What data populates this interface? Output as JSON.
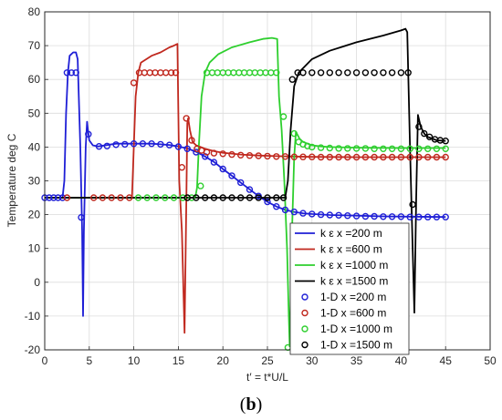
{
  "chart_data": {
    "type": "line",
    "xlabel": "t′ = t*U/L",
    "ylabel": "Temperature deg C",
    "xlim": [
      0,
      50
    ],
    "ylim": [
      -20,
      80
    ],
    "xticks": [
      0,
      5,
      10,
      15,
      20,
      25,
      30,
      35,
      40,
      45,
      50
    ],
    "yticks": [
      -20,
      -10,
      0,
      10,
      20,
      30,
      40,
      50,
      60,
      70,
      80
    ],
    "grid": true,
    "legend_position": "lower-right",
    "series": [
      {
        "name": "k ε x =200 m",
        "style": "line",
        "color": "#1f1fd6",
        "x": [
          0,
          2.0,
          2.2,
          2.4,
          2.6,
          2.8,
          3.2,
          3.5,
          3.7,
          4.0,
          4.2,
          4.3,
          4.4,
          4.6,
          4.75,
          4.85,
          5.0,
          5.4,
          6,
          7,
          8,
          9,
          10,
          11,
          12,
          13,
          14,
          15,
          16,
          17,
          18,
          19,
          20,
          21,
          22,
          23,
          24,
          25,
          26,
          27,
          28,
          29,
          30,
          32,
          35,
          38,
          41,
          45
        ],
        "y": [
          25,
          25,
          30,
          50,
          62,
          67,
          68,
          68,
          66,
          40,
          15,
          -10,
          15,
          40,
          47.5,
          45,
          42,
          40.5,
          40.2,
          40.6,
          41,
          41,
          41,
          41,
          41,
          40.8,
          40.6,
          40.2,
          39.6,
          38.6,
          37.2,
          35.6,
          33.5,
          31.5,
          29.5,
          27.5,
          25.5,
          23.8,
          22.4,
          21.4,
          20.8,
          20.4,
          20.2,
          19.9,
          19.7,
          19.5,
          19.4,
          19.3
        ]
      },
      {
        "name": "k ε x =600 m",
        "style": "line",
        "color": "#c0281e",
        "x": [
          0,
          9.8,
          10.0,
          10.2,
          10.5,
          10.8,
          12,
          13,
          14,
          14.5,
          14.9,
          15.1,
          15.4,
          15.7,
          15.9,
          16.0,
          16.1,
          16.3,
          16.6,
          17,
          17.5,
          18,
          19,
          20,
          22,
          24,
          26,
          28,
          30,
          35,
          40,
          45
        ],
        "y": [
          25,
          25,
          40,
          55,
          62,
          65,
          67,
          68,
          69.5,
          70,
          70.5,
          30,
          15,
          -15,
          25,
          47,
          48.5,
          45,
          41.5,
          40.5,
          40,
          39.5,
          38.8,
          38.3,
          37.8,
          37.5,
          37.3,
          37.2,
          37.1,
          37,
          37,
          37
        ]
      },
      {
        "name": "k ε x =1000 m",
        "style": "line",
        "color": "#2ecf2e",
        "x": [
          0,
          16.9,
          17.1,
          17.3,
          17.6,
          18.0,
          18.5,
          19.5,
          21,
          23,
          24.5,
          25.5,
          26.1,
          26.3,
          26.6,
          26.9,
          27.2,
          27.4,
          27.5,
          27.7,
          28.0,
          28.2,
          28.6,
          29,
          30,
          31,
          32,
          35,
          40,
          45
        ],
        "y": [
          25,
          25,
          28,
          40,
          55,
          62,
          65,
          67.5,
          69.5,
          71,
          72,
          72.3,
          72,
          55,
          45,
          30,
          10,
          -10,
          -19,
          10,
          37,
          44.5,
          42.5,
          41.5,
          40.5,
          40.2,
          40,
          39.8,
          39.7,
          39.7
        ]
      },
      {
        "name": "k ε x =1500 m",
        "style": "line",
        "color": "#000000",
        "x": [
          0,
          27.0,
          27.3,
          27.6,
          28.0,
          28.5,
          30,
          32,
          35,
          38,
          40,
          40.5,
          40.7,
          41.0,
          41.3,
          41.5,
          41.7,
          41.9,
          42.2,
          42.6,
          43,
          43.5,
          44,
          45
        ],
        "y": [
          25,
          25,
          30,
          45,
          58,
          62,
          66,
          68.5,
          71,
          73,
          74.5,
          75,
          74,
          40,
          10,
          -9,
          25,
          49.5,
          46,
          44,
          43,
          42.5,
          42,
          41.8
        ]
      },
      {
        "name": "1-D  x =200 m",
        "style": "markers",
        "color": "#1f1fd6",
        "x": [
          0,
          0.5,
          1.0,
          1.5,
          2.0,
          2.5,
          3.0,
          3.5,
          4.1,
          4.9,
          6.1,
          7.0,
          8.0,
          9.0,
          10.0,
          11.0,
          12.0,
          13.0,
          14.0,
          15.0,
          16.0,
          17.0,
          18.0,
          19.0,
          20.0,
          21.0,
          22.0,
          23.0,
          24.0,
          25.0,
          26.0,
          27.0,
          28.0,
          29.0,
          30.0,
          31.0,
          32.0,
          33.0,
          34.0,
          35.0,
          36.0,
          37.0,
          38.0,
          39.0,
          40.0,
          41.0,
          42.0,
          43.0,
          44.0,
          45.0
        ],
        "y": [
          25,
          25,
          25,
          25,
          25,
          62,
          62,
          62,
          19.2,
          43.8,
          40.2,
          40.3,
          40.7,
          40.8,
          41,
          41,
          41,
          40.8,
          40.6,
          40.1,
          39.5,
          38.5,
          37.2,
          35.5,
          33.5,
          31.5,
          29.5,
          27.4,
          25.5,
          23.8,
          22.4,
          21.4,
          20.8,
          20.4,
          20.2,
          20,
          19.9,
          19.8,
          19.7,
          19.6,
          19.5,
          19.5,
          19.4,
          19.4,
          19.4,
          19.3,
          19.3,
          19.3,
          19.3,
          19.3
        ]
      },
      {
        "name": "1-D  x =600 m",
        "style": "markers",
        "color": "#c0281e",
        "x": [
          2.5,
          5.5,
          6.5,
          7.5,
          8.5,
          9.5,
          10.0,
          10.6,
          11.2,
          11.8,
          12.4,
          13.0,
          13.6,
          14.2,
          14.7,
          15.4,
          15.9,
          16.5,
          17.1,
          17.6,
          18.2,
          19.0,
          20.0,
          21.0,
          22.0,
          23.0,
          24.0,
          25.0,
          26.0,
          27.0,
          28.0,
          29.0,
          30.0,
          31.0,
          32.0,
          33.0,
          34.0,
          35.0,
          36.0,
          37.0,
          38.0,
          39.0,
          40.0,
          41.0,
          42.0,
          43.0,
          44.0,
          45.0
        ],
        "y": [
          25,
          25,
          25,
          25,
          25,
          25,
          59,
          62,
          62,
          62,
          62,
          62,
          62,
          62,
          62,
          34,
          48.5,
          42,
          39.5,
          39,
          38.5,
          38.2,
          38,
          37.8,
          37.6,
          37.5,
          37.4,
          37.3,
          37.2,
          37.2,
          37.1,
          37.1,
          37.1,
          37,
          37,
          37,
          37,
          37,
          37,
          37,
          37,
          37,
          37,
          37,
          37,
          37,
          37,
          37
        ]
      },
      {
        "name": "1-D  x =1000 m",
        "style": "markers",
        "color": "#2ecf2e",
        "x": [
          10.5,
          11.5,
          12.5,
          13.5,
          14.5,
          15.5,
          16.5,
          17.5,
          18.2,
          18.8,
          19.4,
          20.0,
          20.6,
          21.2,
          21.8,
          22.4,
          23.0,
          23.6,
          24.2,
          24.8,
          25.4,
          26.0,
          26.8,
          27.3,
          28.0,
          28.5,
          29.0,
          29.5,
          30.0,
          31.0,
          32.0,
          33.0,
          34.0,
          35.0,
          36.0,
          37.0,
          38.0,
          39.0,
          40.0,
          41.0,
          42.0,
          43.0,
          44.0,
          45.0
        ],
        "y": [
          25,
          25,
          25,
          25,
          25,
          25,
          25,
          28.5,
          62,
          62,
          62,
          62,
          62,
          62,
          62,
          62,
          62,
          62,
          62,
          62,
          62,
          62,
          49,
          -19.3,
          44,
          41.5,
          40.8,
          40.3,
          40,
          39.8,
          39.7,
          39.6,
          39.6,
          39.6,
          39.6,
          39.5,
          39.5,
          39.5,
          39.5,
          39.5,
          39.5,
          39.5,
          39.5,
          39.5
        ]
      },
      {
        "name": "1-D  x =1500 m",
        "style": "markers",
        "color": "#000000",
        "x": [
          16.0,
          17.0,
          18.0,
          19.0,
          20.0,
          21.0,
          22.0,
          23.0,
          24.0,
          25.0,
          26.0,
          26.8,
          27.8,
          28.4,
          29.0,
          30.0,
          31.0,
          32.0,
          33.0,
          34.0,
          35.0,
          36.0,
          37.0,
          38.0,
          39.0,
          40.0,
          40.8,
          41.3,
          42.0,
          42.6,
          43.2,
          43.8,
          44.4,
          45.0
        ],
        "y": [
          25,
          25,
          25,
          25,
          25,
          25,
          25,
          25,
          25,
          25,
          25,
          25,
          60,
          62,
          62,
          62,
          62,
          62,
          62,
          62,
          62,
          62,
          62,
          62,
          62,
          62,
          62,
          23,
          46,
          44,
          43,
          42.3,
          42,
          41.8
        ]
      }
    ],
    "legend_entries": [
      {
        "label": "k ε x =200 m",
        "kind": "line",
        "color": "#1f1fd6"
      },
      {
        "label": "k ε x =600 m",
        "kind": "line",
        "color": "#c0281e"
      },
      {
        "label": "k ε x =1000 m",
        "kind": "line",
        "color": "#2ecf2e"
      },
      {
        "label": "k ε x =1500 m",
        "kind": "line",
        "color": "#000000"
      },
      {
        "label": "1-D  x =200 m",
        "kind": "marker",
        "color": "#1f1fd6"
      },
      {
        "label": "1-D  x =600 m",
        "kind": "marker",
        "color": "#c0281e"
      },
      {
        "label": "1-D  x =1000 m",
        "kind": "marker",
        "color": "#2ecf2e"
      },
      {
        "label": "1-D  x =1500 m",
        "kind": "marker",
        "color": "#000000"
      }
    ]
  },
  "caption": {
    "open": "(",
    "label": "b",
    "close": ")"
  }
}
